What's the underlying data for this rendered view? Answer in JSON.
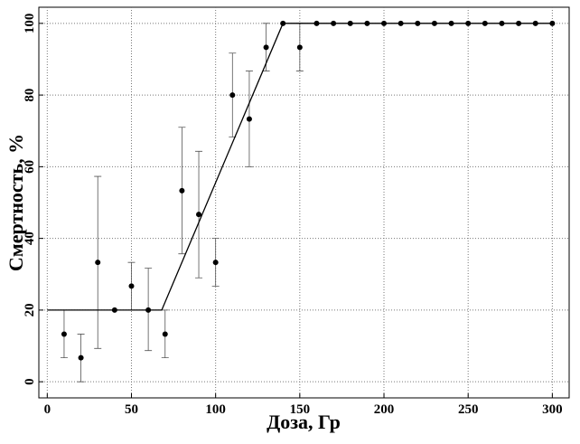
{
  "chart_data": {
    "type": "scatter",
    "xlabel": "Доза, Гр",
    "ylabel": "Смертность, %",
    "xlim": [
      -5,
      310
    ],
    "ylim": [
      -4.5,
      104.5
    ],
    "xticks": [
      0,
      50,
      100,
      150,
      200,
      250,
      300
    ],
    "yticks": [
      0,
      20,
      40,
      60,
      80,
      100
    ],
    "grid": true,
    "series": [
      {
        "color": "#000000",
        "x": [
          10,
          20,
          30,
          40,
          50,
          60,
          70,
          80,
          90,
          100,
          110,
          120,
          130,
          140,
          150,
          160,
          170,
          180,
          190,
          200,
          210,
          220,
          230,
          240,
          250,
          260,
          270,
          280,
          290,
          300
        ],
        "values": [
          13.3,
          6.7,
          33.3,
          20,
          26.7,
          20,
          13.3,
          53.3,
          46.7,
          33.3,
          80,
          73.3,
          93.3,
          100,
          93.3,
          100,
          100,
          100,
          100,
          100,
          100,
          100,
          100,
          100,
          100,
          100,
          100,
          100,
          100,
          100
        ],
        "lower": [
          6.7,
          0,
          9.3,
          null,
          20,
          8.7,
          6.7,
          35.7,
          29,
          26.7,
          68.3,
          60,
          86.7,
          null,
          86.7,
          null,
          null,
          null,
          null,
          null,
          null,
          null,
          null,
          null,
          null,
          null,
          null,
          null,
          null,
          null
        ],
        "upper": [
          20,
          13.3,
          57.3,
          null,
          33.3,
          31.7,
          20,
          71,
          64.3,
          40,
          91.7,
          86.7,
          100,
          null,
          100,
          null,
          null,
          null,
          null,
          null,
          null,
          null,
          null,
          null,
          null,
          null,
          null,
          null,
          null,
          null
        ]
      },
      {
        "type": "line",
        "color": "#000000",
        "x": [
          0,
          68,
          140,
          300
        ],
        "values": [
          20,
          20,
          100,
          100
        ]
      }
    ]
  }
}
